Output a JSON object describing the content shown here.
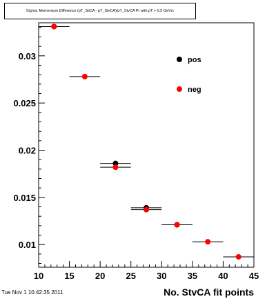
{
  "window": {
    "timestamp": "Tue Nov  1 10:42:35 2011"
  },
  "chart_data": {
    "type": "scatter",
    "title": "Sigma: Momentum Difference (pT_StiCA - pT_StvCA)/pT_StvCA Pr with pT > 0.5 GeV/c",
    "xlabel": "No. StvCA fit points",
    "ylabel": "",
    "xlim": [
      10,
      45
    ],
    "ylim": [
      0.0076,
      0.0335
    ],
    "x_ticks": [
      "10",
      "15",
      "20",
      "25",
      "30",
      "35",
      "40",
      "45"
    ],
    "y_ticks": [
      "0.01",
      "0.015",
      "0.02",
      "0.025",
      "0.03"
    ],
    "y_tick_values": [
      0.01,
      0.015,
      0.02,
      0.025,
      0.03
    ],
    "legend_position": "top-right",
    "series": [
      {
        "name": "pos",
        "color": "#000000",
        "x": [
          12.5,
          22.5,
          27.5,
          32.5
        ],
        "y": [
          0.0331,
          0.0186,
          0.0139,
          0.0121
        ],
        "xerr": [
          2.5,
          2.5,
          2.5,
          2.5
        ]
      },
      {
        "name": "neg",
        "color": "#ff0000",
        "x": [
          12.5,
          17.5,
          22.5,
          27.5,
          32.5,
          37.5,
          42.5
        ],
        "y": [
          0.0331,
          0.0278,
          0.0182,
          0.0137,
          0.0121,
          0.0103,
          0.0087
        ],
        "xerr": [
          2.5,
          2.5,
          2.5,
          2.5,
          2.5,
          2.5,
          2.5
        ]
      }
    ]
  }
}
